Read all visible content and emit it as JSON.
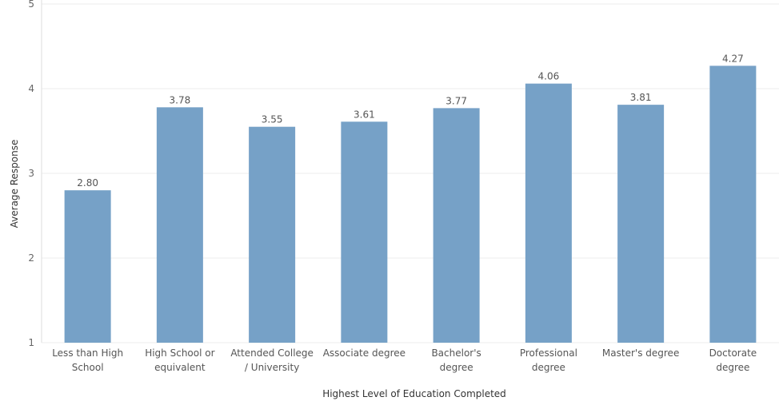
{
  "chart_data": {
    "type": "bar",
    "categories": [
      [
        "Less than High",
        "School"
      ],
      [
        "High School or",
        "equivalent"
      ],
      [
        "Attended College",
        "/ University"
      ],
      [
        "Associate degree"
      ],
      [
        "Bachelor's",
        "degree"
      ],
      [
        "Professional",
        "degree"
      ],
      [
        "Master's degree"
      ],
      [
        "Doctorate",
        "degree"
      ]
    ],
    "values": [
      2.8,
      3.78,
      3.55,
      3.61,
      3.77,
      4.06,
      3.81,
      4.27
    ],
    "value_labels": [
      "2.80",
      "3.78",
      "3.55",
      "3.61",
      "3.77",
      "4.06",
      "3.81",
      "4.27"
    ],
    "xlabel": "Highest Level of Education Completed",
    "ylabel": "Average Response",
    "ylim": [
      1,
      5
    ],
    "yticks": [
      "1",
      "2",
      "3",
      "4",
      "5"
    ],
    "grid": true,
    "bar_color": "#76a1c7"
  }
}
